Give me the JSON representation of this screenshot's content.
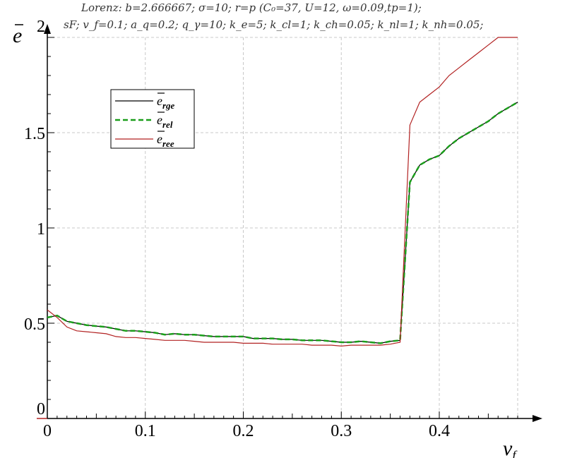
{
  "chart_data": {
    "type": "line",
    "title_lines": [
      "Lorenz: b=2.666667; σ=10; r=p (C₀=37, U=12, ω=0.09,tp=1);",
      "sF; v_f=0.1; a_q=0.2; q_γ=10; k_e=5; k_cl=1; k_ch=0.05; k_nl=1; k_nh=0.05;"
    ],
    "xlabel": "v_f",
    "ylabel": "e",
    "xlim": [
      0,
      0.48
    ],
    "ylim": [
      0,
      2
    ],
    "x_ticks": [
      "0",
      "0.1",
      "0.2",
      "0.3",
      "0.4"
    ],
    "x_tick_values": [
      0,
      0.1,
      0.2,
      0.3,
      0.4
    ],
    "y_ticks": [
      "0",
      "0.5",
      "1",
      "1.5",
      "2"
    ],
    "y_tick_values": [
      0,
      0.5,
      1,
      1.5,
      2
    ],
    "grid": true,
    "legend_position": "upper-left",
    "x": [
      0,
      0.01,
      0.02,
      0.03,
      0.04,
      0.05,
      0.06,
      0.07,
      0.08,
      0.09,
      0.1,
      0.11,
      0.12,
      0.13,
      0.14,
      0.15,
      0.16,
      0.17,
      0.18,
      0.19,
      0.2,
      0.21,
      0.22,
      0.23,
      0.24,
      0.25,
      0.26,
      0.27,
      0.28,
      0.29,
      0.3,
      0.31,
      0.32,
      0.33,
      0.34,
      0.35,
      0.36,
      0.37,
      0.38,
      0.39,
      0.4,
      0.41,
      0.42,
      0.43,
      0.44,
      0.45,
      0.46,
      0.47,
      0.48
    ],
    "series": [
      {
        "name": "e_rge",
        "subscript": "rge",
        "color": "#000000",
        "style": "solid",
        "values": [
          0.53,
          0.54,
          0.51,
          0.5,
          0.49,
          0.485,
          0.48,
          0.47,
          0.46,
          0.46,
          0.455,
          0.45,
          0.44,
          0.445,
          0.44,
          0.44,
          0.435,
          0.43,
          0.43,
          0.43,
          0.43,
          0.42,
          0.42,
          0.42,
          0.415,
          0.415,
          0.41,
          0.41,
          0.41,
          0.405,
          0.4,
          0.4,
          0.405,
          0.4,
          0.395,
          0.405,
          0.41,
          1.24,
          1.33,
          1.36,
          1.38,
          1.43,
          1.47,
          1.5,
          1.53,
          1.56,
          1.6,
          1.63,
          1.66
        ]
      },
      {
        "name": "e_rel",
        "subscript": "rel",
        "color": "#1a9e1a",
        "style": "dashed",
        "values": [
          0.53,
          0.54,
          0.51,
          0.5,
          0.49,
          0.485,
          0.48,
          0.47,
          0.46,
          0.46,
          0.455,
          0.45,
          0.44,
          0.445,
          0.44,
          0.44,
          0.435,
          0.43,
          0.43,
          0.43,
          0.43,
          0.42,
          0.42,
          0.42,
          0.415,
          0.415,
          0.41,
          0.41,
          0.41,
          0.405,
          0.4,
          0.4,
          0.405,
          0.4,
          0.395,
          0.405,
          0.41,
          1.24,
          1.33,
          1.36,
          1.38,
          1.43,
          1.47,
          1.5,
          1.53,
          1.56,
          1.6,
          1.63,
          1.66
        ]
      },
      {
        "name": "e_ree",
        "subscript": "ree",
        "color": "#b22222",
        "style": "solid",
        "values": [
          0.57,
          0.53,
          0.48,
          0.46,
          0.455,
          0.45,
          0.445,
          0.43,
          0.425,
          0.425,
          0.42,
          0.415,
          0.41,
          0.41,
          0.41,
          0.405,
          0.4,
          0.4,
          0.4,
          0.4,
          0.395,
          0.395,
          0.395,
          0.39,
          0.39,
          0.39,
          0.39,
          0.385,
          0.385,
          0.385,
          0.38,
          0.385,
          0.385,
          0.385,
          0.385,
          0.39,
          0.4,
          1.54,
          1.66,
          1.7,
          1.74,
          1.8,
          1.84,
          1.88,
          1.92,
          1.96,
          2.0,
          2.05,
          2.1
        ]
      }
    ]
  }
}
